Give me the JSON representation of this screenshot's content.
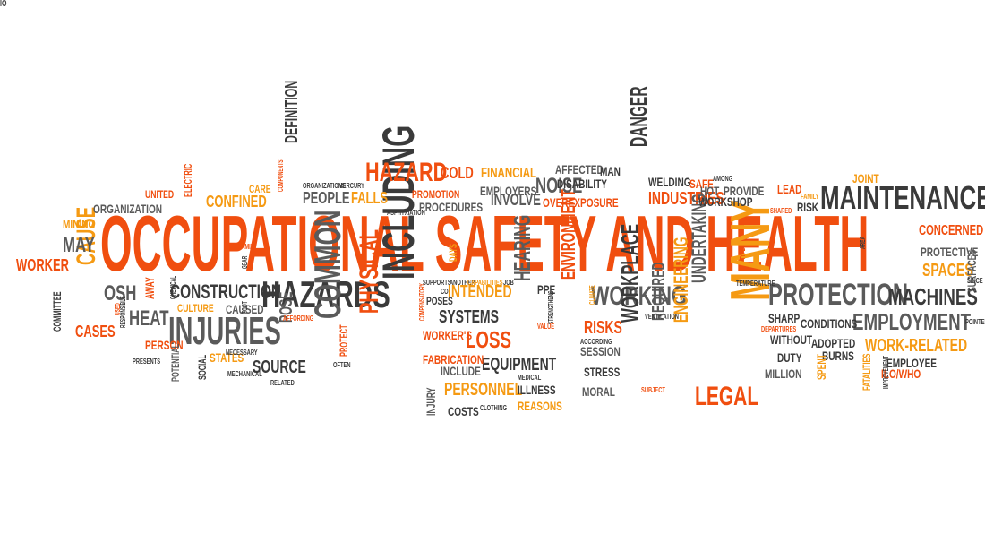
{
  "colors": {
    "orange": "#f04e0f",
    "amber": "#f59a13",
    "dark": "#3a3a3a",
    "gray": "#5a5a5a"
  },
  "words": [
    {
      "text": "OCCUPATIONAL SAFETY AND HEALTH",
      "color": "orange",
      "rotated": false
    },
    {
      "text": "MAINTENANCE",
      "color": "dark",
      "rotated": false
    },
    {
      "text": "HAZARDS",
      "color": "dark",
      "rotated": false
    },
    {
      "text": "INJURIES",
      "color": "gray",
      "rotated": false
    },
    {
      "text": "INCLUDING",
      "color": "dark",
      "rotated": true
    },
    {
      "text": "COMMON",
      "color": "gray",
      "rotated": true
    },
    {
      "text": "MANY",
      "color": "amber",
      "rotated": true
    },
    {
      "text": "PROTECTION",
      "color": "gray",
      "rotated": false
    },
    {
      "text": "MACHINES",
      "color": "dark",
      "rotated": false
    },
    {
      "text": "EMPLOYMENT",
      "color": "gray",
      "rotated": false
    },
    {
      "text": "WORKING",
      "color": "gray",
      "rotated": false
    },
    {
      "text": "WORKPLACE",
      "color": "dark",
      "rotated": true
    },
    {
      "text": "PHYSICAL",
      "color": "orange",
      "rotated": true
    },
    {
      "text": "ENVIRONMENT",
      "color": "orange",
      "rotated": true
    },
    {
      "text": "LEGAL",
      "color": "orange",
      "rotated": false
    },
    {
      "text": "CAUSE",
      "color": "amber",
      "rotated": true
    },
    {
      "text": "HAZARD",
      "color": "orange",
      "rotated": false
    },
    {
      "text": "DANGER",
      "color": "dark",
      "rotated": true
    },
    {
      "text": "CONSTRUCTION",
      "color": "dark",
      "rotated": false
    },
    {
      "text": "HEARING",
      "color": "gray",
      "rotated": true
    },
    {
      "text": "LOSS",
      "color": "orange",
      "rotated": false
    },
    {
      "text": "HEAT",
      "color": "gray",
      "rotated": false
    },
    {
      "text": "OSH",
      "color": "gray",
      "rotated": false
    },
    {
      "text": "MAY",
      "color": "gray",
      "rotated": false
    },
    {
      "text": "WORKER",
      "color": "orange",
      "rotated": false
    },
    {
      "text": "CASES",
      "color": "orange",
      "rotated": false
    },
    {
      "text": "CONFINED",
      "color": "amber",
      "rotated": false
    },
    {
      "text": "PEOPLE",
      "color": "gray",
      "rotated": false
    },
    {
      "text": "FALLS",
      "color": "amber",
      "rotated": false
    },
    {
      "text": "INVOLVE",
      "color": "gray",
      "rotated": false
    },
    {
      "text": "NOISE",
      "color": "gray",
      "rotated": false
    },
    {
      "text": "INDUSTRIES",
      "color": "orange",
      "rotated": false
    },
    {
      "text": "WORK-RELATED",
      "color": "amber",
      "rotated": false
    },
    {
      "text": "PERSONNEL",
      "color": "amber",
      "rotated": false
    },
    {
      "text": "EQUIPMENT",
      "color": "dark",
      "rotated": false
    },
    {
      "text": "SYSTEMS",
      "color": "dark",
      "rotated": false
    },
    {
      "text": "INTENDED",
      "color": "amber",
      "rotated": false
    },
    {
      "text": "RISKS",
      "color": "orange",
      "rotated": false
    },
    {
      "text": "ENGINEERING",
      "color": "amber",
      "rotated": true
    },
    {
      "text": "UNDERTAKING",
      "color": "gray",
      "rotated": true
    },
    {
      "text": "REQUIRED",
      "color": "gray",
      "rotated": true
    },
    {
      "text": "SPACES",
      "color": "amber",
      "rotated": false
    },
    {
      "text": "CONCERNED",
      "color": "orange",
      "rotated": false
    },
    {
      "text": "SOURCE",
      "color": "dark",
      "rotated": false
    },
    {
      "text": "POSE",
      "color": "gray",
      "rotated": true
    },
    {
      "text": "FINANCIAL",
      "color": "amber",
      "rotated": false
    },
    {
      "text": "COLD",
      "color": "orange",
      "rotated": false
    },
    {
      "text": "DEFINITION",
      "color": "dark",
      "rotated": true
    },
    {
      "text": "EMPLOYERS",
      "color": "gray",
      "rotated": false
    },
    {
      "text": "OVEREXPOSURE",
      "color": "orange",
      "rotated": false
    },
    {
      "text": "DISABILITY",
      "color": "dark",
      "rotated": false
    },
    {
      "text": "AFFECTED",
      "color": "gray",
      "rotated": false
    },
    {
      "text": "MAN",
      "color": "dark",
      "rotated": false
    },
    {
      "text": "WELDING",
      "color": "dark",
      "rotated": false
    },
    {
      "text": "SAFE",
      "color": "orange",
      "rotated": false
    },
    {
      "text": "WORKSHOP",
      "color": "dark",
      "rotated": false
    },
    {
      "text": "HOT",
      "color": "gray",
      "rotated": false
    },
    {
      "text": "PROVIDE",
      "color": "gray",
      "rotated": false
    },
    {
      "text": "LEAD",
      "color": "orange",
      "rotated": false
    },
    {
      "text": "RISK",
      "color": "dark",
      "rotated": false
    },
    {
      "text": "JOINT",
      "color": "amber",
      "rotated": false
    },
    {
      "text": "PROTECTIVE",
      "color": "gray",
      "rotated": false
    },
    {
      "text": "SURFACES",
      "color": "gray",
      "rotated": true
    },
    {
      "text": "PROCEDURES",
      "color": "gray",
      "rotated": false
    },
    {
      "text": "PROMOTION",
      "color": "orange",
      "rotated": false
    },
    {
      "text": "UNITED",
      "color": "orange",
      "rotated": false
    },
    {
      "text": "ORGANIZATION",
      "color": "gray",
      "rotated": false
    },
    {
      "text": "ELECTRIC",
      "color": "orange",
      "rotated": true
    },
    {
      "text": "MINING",
      "color": "amber",
      "rotated": false
    },
    {
      "text": "CARE",
      "color": "amber",
      "rotated": false
    },
    {
      "text": "COMMITTEE",
      "color": "dark",
      "rotated": true
    },
    {
      "text": "AWAY",
      "color": "orange",
      "rotated": true
    },
    {
      "text": "CULTURE",
      "color": "amber",
      "rotated": false
    },
    {
      "text": "CAUSED",
      "color": "gray",
      "rotated": false
    },
    {
      "text": "PERSON",
      "color": "orange",
      "rotated": false
    },
    {
      "text": "STATES",
      "color": "amber",
      "rotated": false
    },
    {
      "text": "SOCIAL",
      "color": "dark",
      "rotated": true
    },
    {
      "text": "POTENTIAL",
      "color": "gray",
      "rotated": true
    },
    {
      "text": "PROTECT",
      "color": "orange",
      "rotated": true
    },
    {
      "text": "WORKER'S",
      "color": "orange",
      "rotated": false
    },
    {
      "text": "FABRICATION",
      "color": "orange",
      "rotated": false
    },
    {
      "text": "INCLUDE",
      "color": "gray",
      "rotated": false
    },
    {
      "text": "INJURY",
      "color": "gray",
      "rotated": true
    },
    {
      "text": "COSTS",
      "color": "dark",
      "rotated": false
    },
    {
      "text": "ILLNESS",
      "color": "dark",
      "rotated": false
    },
    {
      "text": "REASONS",
      "color": "amber",
      "rotated": false
    },
    {
      "text": "STRESS",
      "color": "dark",
      "rotated": false
    },
    {
      "text": "MORAL",
      "color": "gray",
      "rotated": false
    },
    {
      "text": "SESSION",
      "color": "gray",
      "rotated": false
    },
    {
      "text": "PPE",
      "color": "dark",
      "rotated": false
    },
    {
      "text": "SHARP",
      "color": "dark",
      "rotated": false
    },
    {
      "text": "CONDITIONS",
      "color": "dark",
      "rotated": false
    },
    {
      "text": "WITHOUT",
      "color": "dark",
      "rotated": false
    },
    {
      "text": "ADOPTED",
      "color": "dark",
      "rotated": false
    },
    {
      "text": "BURNS",
      "color": "dark",
      "rotated": false
    },
    {
      "text": "DUTY",
      "color": "dark",
      "rotated": false
    },
    {
      "text": "MILLION",
      "color": "gray",
      "rotated": false
    },
    {
      "text": "SPENT",
      "color": "amber",
      "rotated": true
    },
    {
      "text": "FATALITIES",
      "color": "amber",
      "rotated": true
    },
    {
      "text": "EMPLOYEE",
      "color": "dark",
      "rotated": false
    },
    {
      "text": "ILO/WHO",
      "color": "orange",
      "rotated": false
    },
    {
      "text": "DAYS",
      "color": "amber",
      "rotated": true
    },
    {
      "text": "POSES",
      "color": "dark",
      "rotated": false
    },
    {
      "text": "ASPHYXIATION",
      "color": "dark",
      "rotated": false
    },
    {
      "text": "SUPPORTS",
      "color": "dark",
      "rotated": false
    },
    {
      "text": "ANOTHER",
      "color": "dark",
      "rotated": false
    },
    {
      "text": "CAPABILITIES",
      "color": "amber",
      "rotated": false
    },
    {
      "text": "JOB",
      "color": "dark",
      "rotated": false
    },
    {
      "text": "COT",
      "color": "dark",
      "rotated": false
    },
    {
      "text": "COMPENSATORY",
      "color": "orange",
      "rotated": true
    },
    {
      "text": "STRENGTHENS",
      "color": "dark",
      "rotated": true
    },
    {
      "text": "CLIMATE",
      "color": "amber",
      "rotated": true
    },
    {
      "text": "VENTILATION",
      "color": "dark",
      "rotated": false
    },
    {
      "text": "ACCORDING",
      "color": "dark",
      "rotated": false
    },
    {
      "text": "VALUE",
      "color": "orange",
      "rotated": false
    },
    {
      "text": "MEDICAL",
      "color": "dark",
      "rotated": false
    },
    {
      "text": "CLOTHING",
      "color": "dark",
      "rotated": false
    },
    {
      "text": "SUBJECT",
      "color": "orange",
      "rotated": false
    },
    {
      "text": "TEMPERATURE",
      "color": "dark",
      "rotated": false
    },
    {
      "text": "TYPES",
      "color": "orange",
      "rotated": true
    },
    {
      "text": "AREA",
      "color": "dark",
      "rotated": true
    },
    {
      "text": "SINCE",
      "color": "dark",
      "rotated": false
    },
    {
      "text": "POINTED",
      "color": "dark",
      "rotated": false
    },
    {
      "text": "IMPROVEMENT",
      "color": "dark",
      "rotated": true
    },
    {
      "text": "DEPARTURES",
      "color": "orange",
      "rotated": false
    },
    {
      "text": "SHARED",
      "color": "orange",
      "rotated": false
    },
    {
      "text": "FAMILY",
      "color": "amber",
      "rotated": false
    },
    {
      "text": "AMONG",
      "color": "dark",
      "rotated": false
    },
    {
      "text": "ORGANIZATIONS",
      "color": "dark",
      "rotated": false
    },
    {
      "text": "MERCURY",
      "color": "dark",
      "rotated": false
    },
    {
      "text": "COMPONENTS",
      "color": "orange",
      "rotated": true
    },
    {
      "text": "GEAR",
      "color": "dark",
      "rotated": true
    },
    {
      "text": "FOOT",
      "color": "dark",
      "rotated": true
    },
    {
      "text": "CHEMICAL",
      "color": "dark",
      "rotated": true
    },
    {
      "text": "USED",
      "color": "orange",
      "rotated": true
    },
    {
      "text": "RESPONSIBLE",
      "color": "dark",
      "rotated": true
    },
    {
      "text": "PRESENTS",
      "color": "dark",
      "rotated": false
    },
    {
      "text": "NECESSARY",
      "color": "dark",
      "rotated": false
    },
    {
      "text": "MECHANICAL",
      "color": "dark",
      "rotated": false
    },
    {
      "text": "RELATED",
      "color": "dark",
      "rotated": false
    },
    {
      "text": "AFFORDING",
      "color": "orange",
      "rotated": false
    },
    {
      "text": "OFTEN",
      "color": "dark",
      "rotated": false
    },
    {
      "text": "FAMILY",
      "color": "orange",
      "rotated": false
    },
    {
      "text": "IO",
      "color": "dark",
      "rotated": false
    }
  ]
}
